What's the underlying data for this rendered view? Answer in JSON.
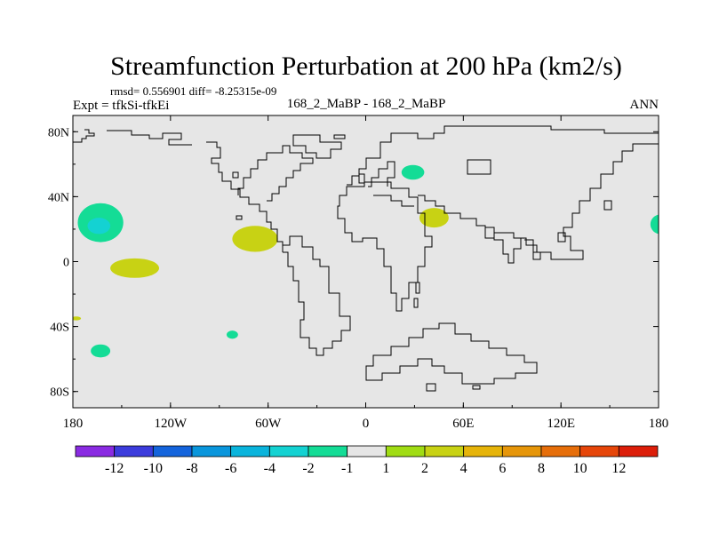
{
  "chart_data": {
    "type": "heatmap",
    "title": "Streamfunction Perturbation at 200 hPa (km2/s)",
    "stats_line": "rmsd= 0.556901 diff= -8.25315e-09",
    "expt_label": "Expt = tfkSi-tfkEi",
    "center_label": "168_2_MaBP - 168_2_MaBP",
    "season_label": "ANN",
    "lon_range": [
      -180,
      180
    ],
    "lat_range": [
      -90,
      90
    ],
    "x_ticks": [
      {
        "value": -180,
        "label": "180"
      },
      {
        "value": -120,
        "label": "120W"
      },
      {
        "value": -60,
        "label": "60W"
      },
      {
        "value": 0,
        "label": "0"
      },
      {
        "value": 60,
        "label": "60E"
      },
      {
        "value": 120,
        "label": "120E"
      },
      {
        "value": 180,
        "label": "180"
      }
    ],
    "y_ticks": [
      {
        "value": 80,
        "label": "80N"
      },
      {
        "value": 40,
        "label": "40N"
      },
      {
        "value": 0,
        "label": "0"
      },
      {
        "value": -40,
        "label": "40S"
      },
      {
        "value": -80,
        "label": "80S"
      }
    ],
    "colorbar": {
      "colors": [
        "#8a2be2",
        "#3c3cdc",
        "#1464dc",
        "#0a96dc",
        "#0ab4dc",
        "#14d2d2",
        "#14dc96",
        "#e6e6e6",
        "#a0dc14",
        "#c8d214",
        "#e6b40a",
        "#e6960a",
        "#e66e0a",
        "#e6460a",
        "#dc1e0a"
      ],
      "boundary_labels": [
        "-12",
        "-10",
        "-8",
        "-6",
        "-4",
        "-2",
        "-1",
        "1",
        "2",
        "4",
        "6",
        "8",
        "10",
        "12"
      ]
    },
    "anomalies": [
      {
        "lon": -163,
        "lat": 24,
        "rlon": 14,
        "rlat": 12,
        "value": -2,
        "name": "north-pacific-outer"
      },
      {
        "lon": -164,
        "lat": 22,
        "rlon": 7,
        "rlat": 5,
        "value": -4,
        "name": "north-pacific-core"
      },
      {
        "lon": -142,
        "lat": -4,
        "rlon": 15,
        "rlat": 6,
        "value": 2,
        "name": "tropical-east-pacific"
      },
      {
        "lon": -68,
        "lat": 14,
        "rlon": 14,
        "rlat": 8,
        "value": 2,
        "name": "caribbean"
      },
      {
        "lon": 42,
        "lat": 27,
        "rlon": 9,
        "rlat": 6,
        "value": 2,
        "name": "middle-east"
      },
      {
        "lon": 29,
        "lat": 55,
        "rlon": 7,
        "rlat": 4.5,
        "value": -2,
        "name": "eastern-europe"
      },
      {
        "lon": 181,
        "lat": 23,
        "rlon": 6,
        "rlat": 6,
        "value": -2,
        "name": "west-pacific-edge"
      },
      {
        "lon": -163,
        "lat": -55,
        "rlon": 6,
        "rlat": 4,
        "value": -2,
        "name": "south-pacific"
      },
      {
        "lon": -82,
        "lat": -45,
        "rlon": 3.5,
        "rlat": 2.5,
        "value": -2,
        "name": "chile-offshore"
      },
      {
        "lon": -178,
        "lat": -35,
        "rlon": 3,
        "rlat": 1.2,
        "value": 2,
        "name": "dateline-south"
      }
    ]
  }
}
